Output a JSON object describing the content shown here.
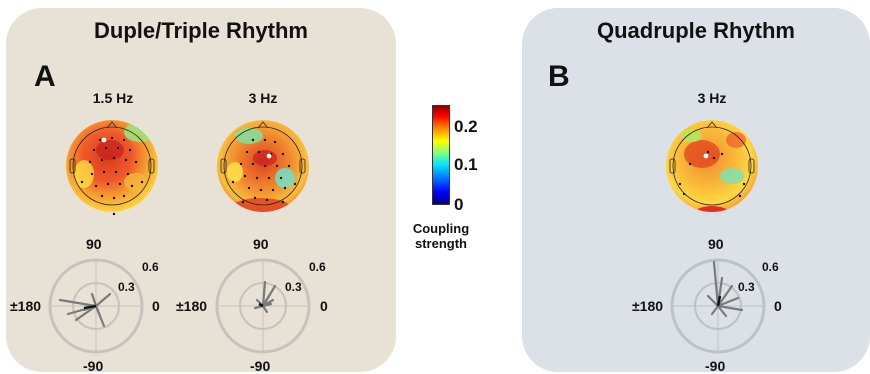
{
  "panel_a": {
    "title": "Duple/Triple Rhythm",
    "letter": "A",
    "maps": [
      {
        "freq": "1.5 Hz"
      },
      {
        "freq": "3 Hz"
      }
    ]
  },
  "panel_b": {
    "title": "Quadruple Rhythm",
    "letter": "B",
    "maps": [
      {
        "freq": "3 Hz"
      }
    ]
  },
  "colorbar": {
    "ticks": [
      "0.2",
      "0.1",
      "0"
    ],
    "title_line1": "Coupling",
    "title_line2": "strength",
    "colors": [
      "#00007f",
      "#0000ff",
      "#00e5ff",
      "#ffff00",
      "#ff0000",
      "#8b0000"
    ]
  },
  "polar": {
    "angle_top": "90",
    "angle_bottom": "-90",
    "angle_left": "±180",
    "angle_right": "0",
    "ring_outer": "0.6",
    "ring_inner": "0.3"
  }
}
